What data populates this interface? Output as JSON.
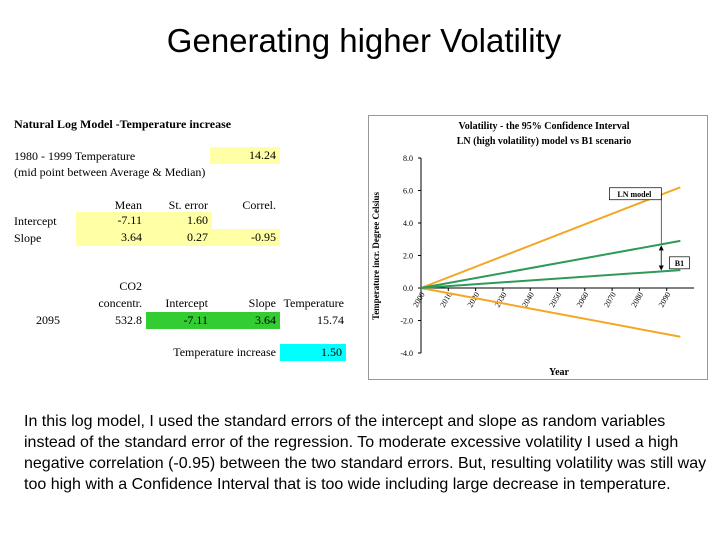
{
  "slide": {
    "title": "Generating higher Volatility",
    "note": "In this log model, I used the standard errors of the intercept and slope as random variables instead of the standard error of the regression.  To moderate excessive volatility I used a high negative correlation (-0.95) between the two standard errors.  But, resulting volatility was still way too high with a Confidence Interval that is too wide including large decrease in temperature."
  },
  "sheet": {
    "heading": "Natural Log Model -Temperature increase",
    "baseline_label": "1980 - 1999 Temperature",
    "baseline_value": "14.24",
    "baseline_note": "(mid point between Average & Median)",
    "stats_headers": [
      "Mean",
      "St. error",
      "Correl."
    ],
    "intercept": {
      "label": "Intercept",
      "mean": "-7.11",
      "se": "1.60"
    },
    "slope": {
      "label": "Slope",
      "mean": "3.64",
      "se": "0.27",
      "corr": "-0.95"
    },
    "calc_headers": {
      "co2_a": "CO2",
      "co2_b": "concentr.",
      "intercept": "Intercept",
      "slope": "Slope",
      "temperature": "Temperature"
    },
    "calc_row": {
      "year": "2095",
      "co2": "532.8",
      "intercept": "-7.11",
      "slope": "3.64",
      "temperature": "15.74"
    },
    "increase_label": "Temperature increase",
    "increase_value": "1.50"
  },
  "colors": {
    "orange": "#f5a623",
    "green": "#2e9a5a"
  },
  "chart_data": {
    "type": "line",
    "title": "Volatility - the 95% Confidence Interval",
    "subtitle": "LN (high volatility) model vs B1 scenario",
    "xlabel": "Year",
    "ylabel": "Temperature incr. Degree Celsius",
    "x": [
      2000,
      2095
    ],
    "xticks": [
      "2000",
      "2010",
      "2020",
      "2030",
      "2040",
      "2050",
      "2060",
      "2070",
      "2080",
      "2090"
    ],
    "yticks": [
      "-4.0",
      "-2.0",
      "0.0",
      "2.0",
      "4.0",
      "6.0",
      "8.0"
    ],
    "ylim": [
      -4,
      8
    ],
    "xlim": [
      2000,
      2100
    ],
    "series": [
      {
        "color": "orange",
        "values": [
          0,
          6.2
        ]
      },
      {
        "color": "orange",
        "values": [
          0,
          -3.0
        ]
      },
      {
        "color": "green",
        "values": [
          0,
          2.9
        ]
      },
      {
        "color": "green",
        "values": [
          0,
          1.1
        ]
      }
    ],
    "annotations": [
      "LN model",
      "B1"
    ],
    "grid": false
  }
}
